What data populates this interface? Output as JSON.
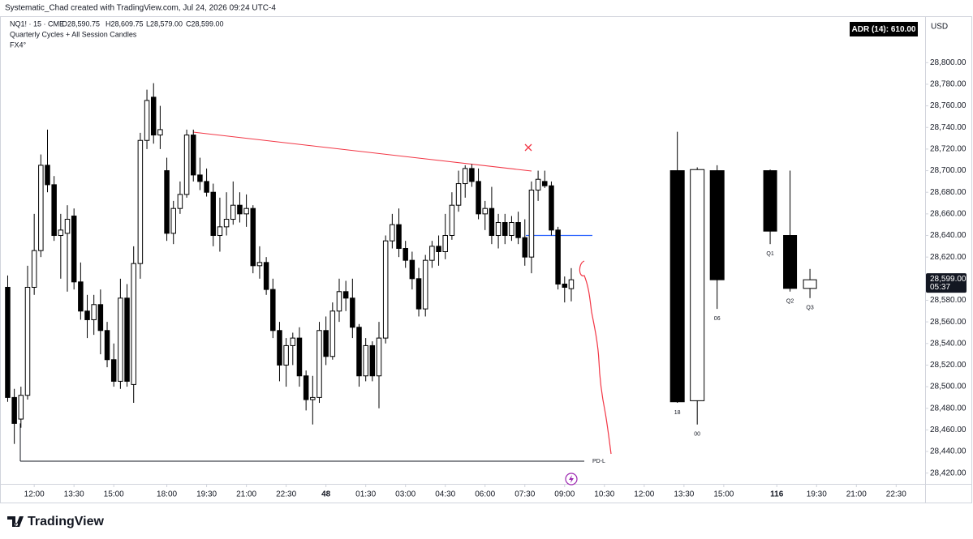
{
  "chart_data": {
    "type": "candlestick",
    "header": "Systematic_Chad created with TradingView.com, Jul 24, 2026 09:24 UTC-4",
    "symbol": "NQ1! · 15 · CME",
    "ohlc_legend": [
      "O28,590.75",
      "H28,609.75",
      "L28,579.00",
      "C28,599.00"
    ],
    "indicators": [
      "Quarterly Cycles + All Session Candles",
      "FX4°"
    ],
    "adr_label": "ADR (14): 610.00",
    "currency": "USD",
    "logo": "TradingView",
    "bull_color": "#ffffff",
    "bear_color": "#000000",
    "candles": {
      "open": [
        28592,
        28490,
        28470,
        28492,
        28592,
        28626,
        28705,
        28687,
        28640,
        28642,
        28658,
        28597,
        28570,
        28562,
        28576,
        28552,
        28525,
        28505,
        28582,
        28502,
        28614,
        28728,
        28768,
        28733,
        28700,
        28642,
        28665,
        28678,
        28733,
        28696,
        28690,
        28680,
        28640,
        28648,
        28655,
        28668,
        28660,
        28665,
        28612,
        28615,
        28590,
        28552,
        28520,
        28538,
        28545,
        28510,
        28488,
        28490,
        28552,
        28528,
        28570,
        28588,
        28582,
        28555,
        28510,
        28538,
        28510,
        28545,
        28635,
        28650,
        28628,
        28617,
        28600,
        28572,
        28617,
        28630,
        28625,
        28640,
        28668,
        28688,
        28702,
        28690,
        28660,
        28665,
        28640,
        28652,
        28640,
        28652,
        28638,
        28620,
        28682,
        28690,
        28686,
        28645,
        28595,
        28590.75
      ],
      "high": [
        28603,
        28498,
        28500,
        28612,
        28660,
        28715,
        28738,
        28695,
        28660,
        28668,
        28665,
        28615,
        28585,
        28585,
        28590,
        28560,
        28540,
        28600,
        28595,
        28630,
        28735,
        28775,
        28781,
        28760,
        28712,
        28672,
        28690,
        28738,
        28738,
        28712,
        28702,
        28688,
        28675,
        28680,
        28690,
        28680,
        28678,
        28668,
        28630,
        28620,
        28600,
        28560,
        28545,
        28550,
        28555,
        28515,
        28510,
        28560,
        28565,
        28578,
        28600,
        28598,
        28600,
        28558,
        28545,
        28542,
        28560,
        28640,
        28660,
        28665,
        28635,
        28625,
        28610,
        28622,
        28635,
        28640,
        28660,
        28680,
        28700,
        28705,
        28706,
        28702,
        28672,
        28685,
        28660,
        28660,
        28658,
        28662,
        28655,
        28690,
        28700,
        28700,
        28690,
        28648,
        28602,
        28609.75
      ],
      "low": [
        28486,
        28447,
        28462,
        28488,
        28585,
        28620,
        28680,
        28635,
        28600,
        28588,
        28590,
        28562,
        28545,
        28548,
        28530,
        28518,
        28500,
        28498,
        28500,
        28485,
        28600,
        28720,
        28725,
        28720,
        28635,
        28632,
        28660,
        28675,
        28690,
        28682,
        28676,
        28630,
        28625,
        28640,
        28650,
        28652,
        28648,
        28605,
        28600,
        28585,
        28545,
        28505,
        28500,
        28520,
        28500,
        28478,
        28465,
        28485,
        28520,
        28525,
        28560,
        28570,
        28545,
        28500,
        28505,
        28505,
        28480,
        28540,
        28628,
        28620,
        28610,
        28590,
        28565,
        28565,
        28610,
        28612,
        28618,
        28636,
        28662,
        28675,
        28685,
        28655,
        28645,
        28632,
        28628,
        28632,
        28635,
        28632,
        28612,
        28605,
        28672,
        28684,
        28640,
        28590,
        28578,
        28579
      ],
      "close": [
        28490,
        28466,
        28492,
        28592,
        28626,
        28705,
        28687,
        28640,
        28645,
        28655,
        28597,
        28570,
        28562,
        28576,
        28552,
        28525,
        28505,
        28582,
        28505,
        28614,
        28728,
        28765,
        28733,
        28738,
        28642,
        28665,
        28678,
        28733,
        28696,
        28690,
        28680,
        28640,
        28648,
        28655,
        28668,
        28660,
        28665,
        28612,
        28615,
        28590,
        28552,
        28520,
        28538,
        28545,
        28510,
        28488,
        28490,
        28552,
        28528,
        28570,
        28588,
        28582,
        28555,
        28510,
        28538,
        28510,
        28545,
        28635,
        28650,
        28628,
        28617,
        28600,
        28572,
        28617,
        28630,
        28625,
        28640,
        28668,
        28688,
        28702,
        28690,
        28660,
        28665,
        28640,
        28652,
        28640,
        28652,
        28638,
        28620,
        28682,
        28692,
        28686,
        28645,
        28595,
        28592,
        28599
      ]
    },
    "session_candles": {
      "labels": [
        "18",
        "00",
        "06",
        "Q1",
        "Q2",
        "Q3"
      ],
      "x": [
        101,
        104,
        107,
        115,
        118,
        121
      ],
      "open": [
        28700,
        28487,
        28700,
        28700,
        28640,
        28591
      ],
      "high": [
        28736,
        28703,
        28705,
        28701,
        28700,
        28609
      ],
      "low": [
        28485,
        28465,
        28572,
        28632,
        28588,
        28582
      ],
      "close": [
        28486,
        28701,
        28599,
        28644,
        28591,
        28599
      ]
    },
    "levels": [
      {
        "label": "PD-L",
        "value": 28431,
        "color": "#131722"
      },
      {
        "value": 28640,
        "color": "#2962ff"
      }
    ],
    "last_price": {
      "value": 28599,
      "label": "28,599.00"
    },
    "countdown": "05:37",
    "xlim": [
      -1.16,
      138.37
    ],
    "xticks": [
      {
        "value": 4,
        "label": "12:00"
      },
      {
        "value": 10,
        "label": "13:30"
      },
      {
        "value": 16,
        "label": "15:00"
      },
      {
        "value": 24,
        "label": "18:00"
      },
      {
        "value": 30,
        "label": "19:30"
      },
      {
        "value": 36,
        "label": "21:00"
      },
      {
        "value": 42,
        "label": "22:30"
      },
      48,
      {
        "value": 54,
        "label": "01:30"
      },
      {
        "value": 60,
        "label": "03:00"
      },
      {
        "value": 66,
        "label": "04:30"
      },
      {
        "value": 72,
        "label": "06:00"
      },
      {
        "value": 78,
        "label": "07:30"
      },
      {
        "value": 84,
        "label": "09:00"
      },
      {
        "value": 90,
        "label": "10:30"
      },
      {
        "value": 96,
        "label": "12:00"
      },
      {
        "value": 102,
        "label": "13:30"
      },
      {
        "value": 108,
        "label": "15:00"
      },
      116,
      {
        "value": 122,
        "label": "19:30"
      },
      {
        "value": 128,
        "label": "21:00"
      },
      {
        "value": 134,
        "label": "22:30"
      }
    ],
    "xtick_labels_bold": [
      48,
      116
    ],
    "ylim": [
      28410,
      28843
    ],
    "yticks": [
      {
        "value": 28420,
        "label": "28,420.00"
      },
      {
        "value": 28440,
        "label": "28,440.00"
      },
      {
        "value": 28460,
        "label": "28,460.00"
      },
      {
        "value": 28480,
        "label": "28,480.00"
      },
      {
        "value": 28500,
        "label": "28,500.00"
      },
      {
        "value": 28520,
        "label": "28,520.00"
      },
      {
        "value": 28540,
        "label": "28,540.00"
      },
      {
        "value": 28560,
        "label": "28,560.00"
      },
      {
        "value": 28580,
        "label": "28,580.00"
      },
      {
        "value": 28600,
        "label": "28,600.00"
      },
      {
        "value": 28620,
        "label": "28,620.00"
      },
      {
        "value": 28640,
        "label": "28,640.00"
      },
      {
        "value": 28660,
        "label": "28,660.00"
      },
      {
        "value": 28680,
        "label": "28,680.00"
      },
      {
        "value": 28700,
        "label": "28,700.00"
      },
      {
        "value": 28720,
        "label": "28,720.00"
      },
      {
        "value": 28740,
        "label": "28,740.00"
      },
      {
        "value": 28760,
        "label": "28,760.00"
      },
      {
        "value": 28780,
        "label": "28,780.00"
      },
      {
        "value": 28800,
        "label": "28,800.00"
      }
    ],
    "grid": false
  }
}
